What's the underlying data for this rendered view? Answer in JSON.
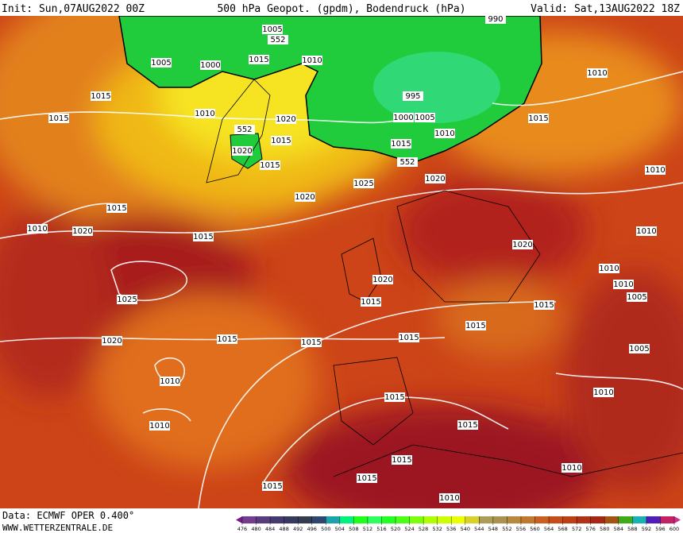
{
  "header": {
    "init": "Init: Sun,07AUG2022 00Z",
    "title": "500 hPa Geopot. (gpdm), Bodendruck (hPa)",
    "valid": "Valid: Sat,13AUG2022 18Z"
  },
  "footer": {
    "data": "Data: ECMWF OPER 0.400°",
    "site": "WWW.WETTERZENTRALE.DE"
  },
  "isobar_labels": [
    "1005",
    "552",
    "1005",
    "1000",
    "1015",
    "1010",
    "990",
    "1010",
    "1015",
    "995",
    "1015",
    "1010",
    "1020",
    "1000",
    "1005",
    "1015",
    "552",
    "1010",
    "1015",
    "1020",
    "1015",
    "1015",
    "552",
    "1010",
    "1025",
    "1020",
    "1020",
    "1015",
    "1010",
    "1020",
    "1015",
    "1010",
    "1020",
    "1010",
    "1020",
    "1010",
    "1025",
    "1015",
    "1015",
    "1005",
    "1015",
    "1020",
    "1015",
    "1015",
    "1015",
    "1005",
    "1010",
    "1015",
    "1010",
    "1010",
    "1015",
    "1015",
    "1010",
    "1015",
    "1015",
    "1010"
  ],
  "legend": {
    "ticks": [
      476,
      480,
      484,
      488,
      492,
      496,
      500,
      504,
      508,
      512,
      516,
      520,
      524,
      528,
      532,
      536,
      540,
      544,
      548,
      552,
      556,
      560,
      564,
      568,
      572,
      576,
      580,
      584,
      588,
      592,
      596,
      600
    ]
  }
}
